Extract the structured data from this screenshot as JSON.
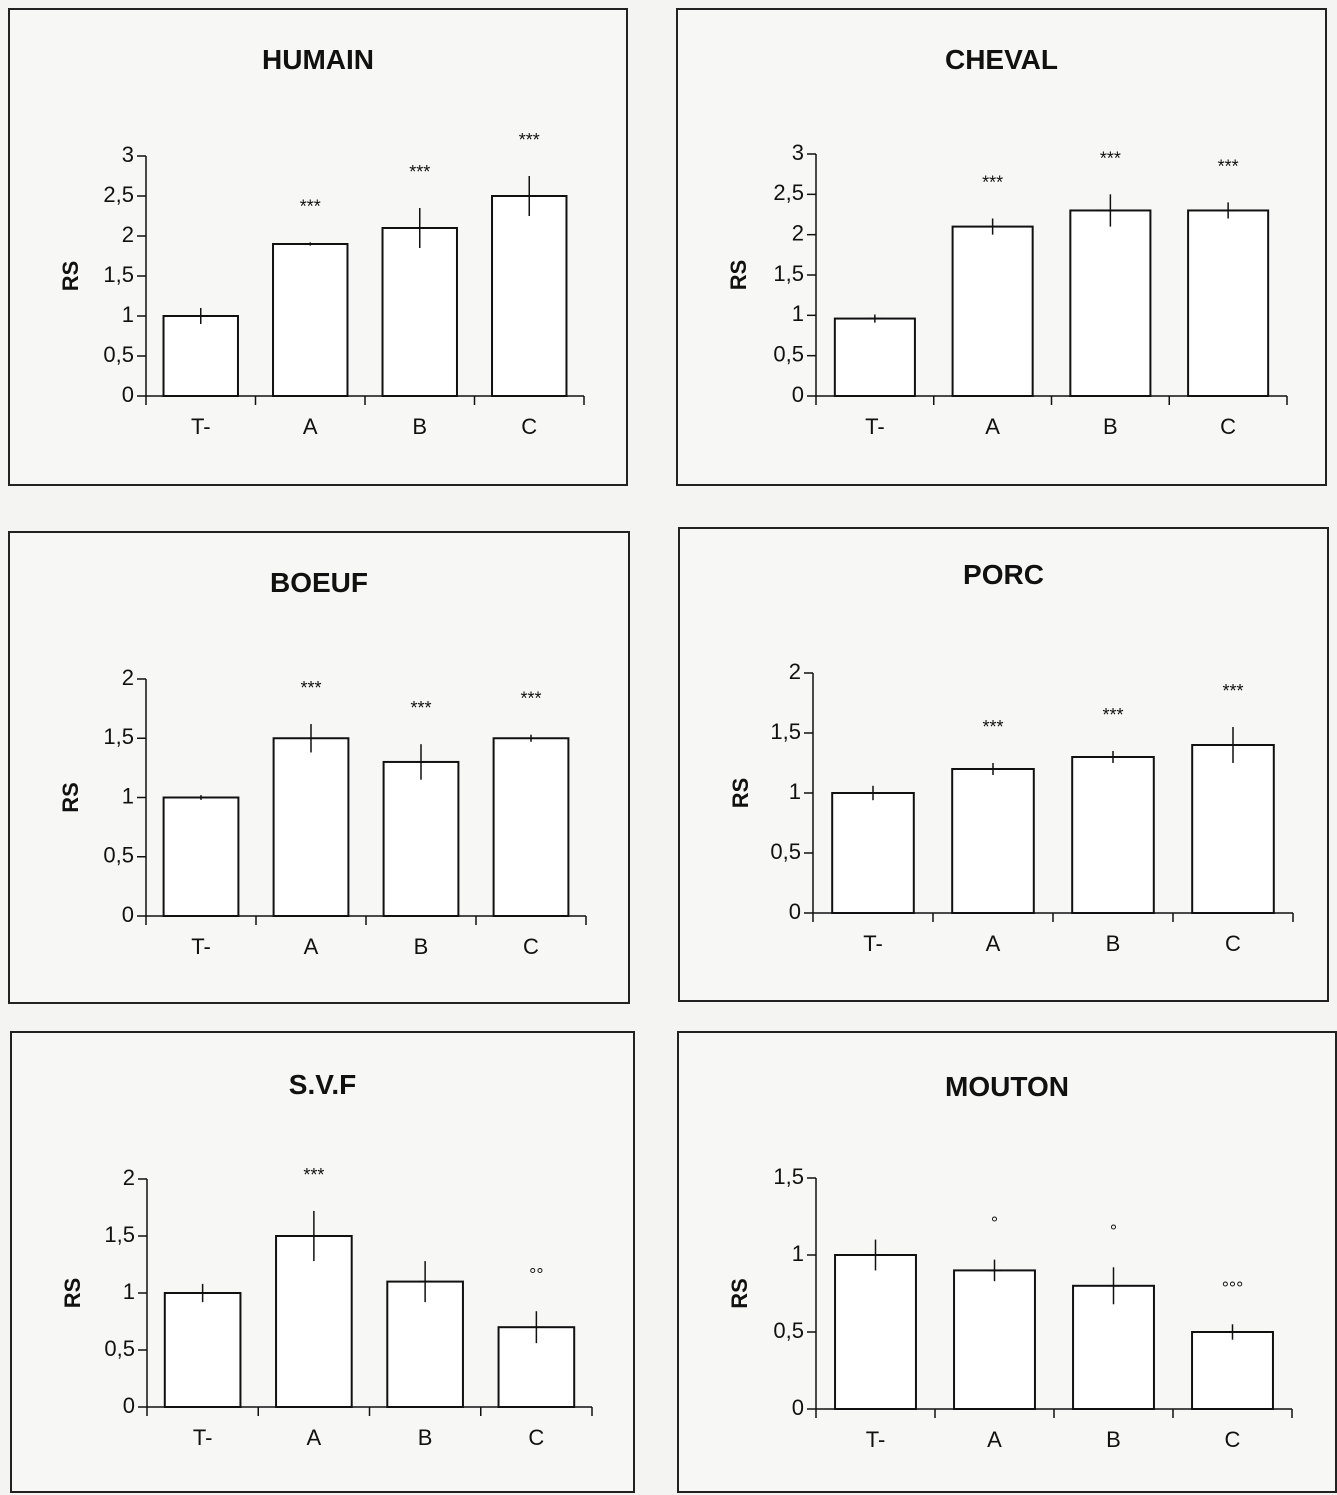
{
  "chart_data": [
    {
      "type": "bar",
      "title": "HUMAIN",
      "ylabel": "RS",
      "categories": [
        "T-",
        "A",
        "B",
        "C"
      ],
      "values": [
        1.0,
        1.9,
        2.1,
        2.5
      ],
      "errors": [
        0.1,
        0.02,
        0.25,
        0.25
      ],
      "annotations": [
        "",
        "***",
        "***",
        "***"
      ],
      "ylim": [
        0,
        3
      ],
      "yticks": [
        0,
        0.5,
        1,
        1.5,
        2,
        2.5,
        3
      ],
      "ytick_labels": [
        "0",
        "0,5",
        "1",
        "1,5",
        "2",
        "2,5",
        "3"
      ]
    },
    {
      "type": "bar",
      "title": "CHEVAL",
      "ylabel": "RS",
      "categories": [
        "T-",
        "A",
        "B",
        "C"
      ],
      "values": [
        0.96,
        2.1,
        2.3,
        2.3
      ],
      "errors": [
        0.05,
        0.1,
        0.2,
        0.1
      ],
      "annotations": [
        "",
        "***",
        "***",
        "***"
      ],
      "ylim": [
        0,
        3
      ],
      "yticks": [
        0,
        0.5,
        1,
        1.5,
        2,
        2.5,
        3
      ],
      "ytick_labels": [
        "0",
        "0,5",
        "1",
        "1,5",
        "2",
        "2,5",
        "3"
      ]
    },
    {
      "type": "bar",
      "title": "BOEUF",
      "ylabel": "RS",
      "categories": [
        "T-",
        "A",
        "B",
        "C"
      ],
      "values": [
        1.0,
        1.5,
        1.3,
        1.5
      ],
      "errors": [
        0.02,
        0.12,
        0.15,
        0.03
      ],
      "annotations": [
        "",
        "***",
        "***",
        "***"
      ],
      "ylim": [
        0,
        2
      ],
      "yticks": [
        0,
        0.5,
        1,
        1.5,
        2
      ],
      "ytick_labels": [
        "0",
        "0,5",
        "1",
        "1,5",
        "2"
      ]
    },
    {
      "type": "bar",
      "title": "PORC",
      "ylabel": "RS",
      "categories": [
        "T-",
        "A",
        "B",
        "C"
      ],
      "values": [
        1.0,
        1.2,
        1.3,
        1.4
      ],
      "errors": [
        0.06,
        0.05,
        0.05,
        0.15
      ],
      "annotations": [
        "",
        "***",
        "***",
        "***"
      ],
      "ylim": [
        0,
        2
      ],
      "yticks": [
        0,
        0.5,
        1,
        1.5,
        2
      ],
      "ytick_labels": [
        "0",
        "0,5",
        "1",
        "1,5",
        "2"
      ]
    },
    {
      "type": "bar",
      "title": "S.V.F",
      "ylabel": "RS",
      "categories": [
        "T-",
        "A",
        "B",
        "C"
      ],
      "values": [
        1.0,
        1.5,
        1.1,
        0.7
      ],
      "errors": [
        0.08,
        0.22,
        0.18,
        0.14
      ],
      "annotations": [
        "",
        "***",
        "",
        "°°"
      ],
      "ylim": [
        0,
        2
      ],
      "yticks": [
        0,
        0.5,
        1,
        1.5,
        2
      ],
      "ytick_labels": [
        "0",
        "0,5",
        "1",
        "1,5",
        "2"
      ]
    },
    {
      "type": "bar",
      "title": "MOUTON",
      "ylabel": "RS",
      "categories": [
        "T-",
        "A",
        "B",
        "C"
      ],
      "values": [
        1.0,
        0.9,
        0.8,
        0.5
      ],
      "errors": [
        0.1,
        0.07,
        0.12,
        0.05
      ],
      "annotations": [
        "",
        "°",
        "°",
        "°°°"
      ],
      "ylim": [
        0,
        1.5
      ],
      "yticks": [
        0,
        0.5,
        1,
        1.5
      ],
      "ytick_labels": [
        "0",
        "0,5",
        "1",
        "1,5"
      ]
    }
  ]
}
